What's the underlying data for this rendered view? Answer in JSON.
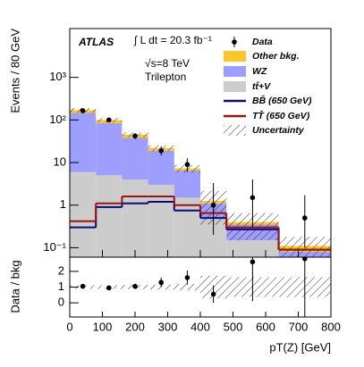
{
  "chart_data": {
    "type": "histogram",
    "annotations": [
      "ATLAS",
      "∫ L dt = 20.3 fb⁻¹",
      "√s=8 TeV",
      "Trilepton"
    ],
    "ylabel": "Events / 80 GeV",
    "xlabel": "pT(Z) [GeV]",
    "bins": [
      0,
      80,
      160,
      240,
      320,
      400,
      480,
      640,
      800
    ],
    "xlim": [
      0,
      800
    ],
    "xticks": [
      0,
      100,
      200,
      300,
      400,
      500,
      600,
      700,
      800
    ],
    "ylim": [
      0.06,
      14000
    ],
    "log_y": true,
    "yticks": [
      {
        "value": 0.1,
        "label": "10⁻¹"
      },
      {
        "value": 1,
        "label": "1"
      },
      {
        "value": 10,
        "label": "10"
      },
      {
        "value": 100,
        "label": "10²"
      },
      {
        "value": 1000,
        "label": "10³"
      }
    ],
    "stack": [
      {
        "name": "tt̄+V",
        "color": "#cccccc",
        "values": [
          6,
          5,
          4,
          3,
          1.5,
          0.5,
          0.15,
          0.03
        ]
      },
      {
        "name": "WZ",
        "color": "#9e9eff",
        "values": [
          140,
          80,
          34,
          16,
          5,
          0.6,
          0.2,
          0.05
        ]
      },
      {
        "name": "Other bkg.",
        "color": "#fbc52e",
        "values": [
          24,
          15,
          7,
          3,
          0.8,
          0.15,
          0.05,
          0.03
        ]
      }
    ],
    "uncertainty": {
      "name": "Uncertainty",
      "values": [
        20,
        12,
        6,
        3.5,
        1.5,
        0.9,
        0.25,
        0.07
      ]
    },
    "lines": [
      {
        "name": "BB̄ (650 GeV)",
        "color": "#0b0b7a",
        "values": [
          0.3,
          0.9,
          1.1,
          1.2,
          0.75,
          0.5,
          0.27,
          0.09
        ]
      },
      {
        "name": "TT̄ (650 GeV)",
        "color": "#9a1414",
        "values": [
          0.42,
          1.1,
          1.6,
          1.6,
          1.0,
          0.65,
          0.3,
          0.09
        ]
      }
    ],
    "data": {
      "name": "Data",
      "values": [
        165,
        100,
        42,
        19,
        9,
        1,
        1.5,
        0.5
      ],
      "errors_low": [
        13,
        10,
        6.5,
        4.3,
        2.9,
        0.8,
        1.2,
        0.4
      ],
      "errors_high": [
        13,
        10,
        7,
        5,
        3.5,
        2.3,
        2.5,
        1.2
      ]
    },
    "ratio": {
      "ylabel": "Data / bkg",
      "ylim": [
        -0.9,
        2.9
      ],
      "yticks": [
        0,
        1,
        2
      ],
      "values": [
        1.05,
        0.95,
        1.05,
        1.3,
        1.6,
        0.55,
        2.6,
        2.8
      ],
      "errors": [
        0.08,
        0.1,
        0.16,
        0.3,
        0.45,
        0.55,
        2.5,
        4
      ]
    }
  }
}
